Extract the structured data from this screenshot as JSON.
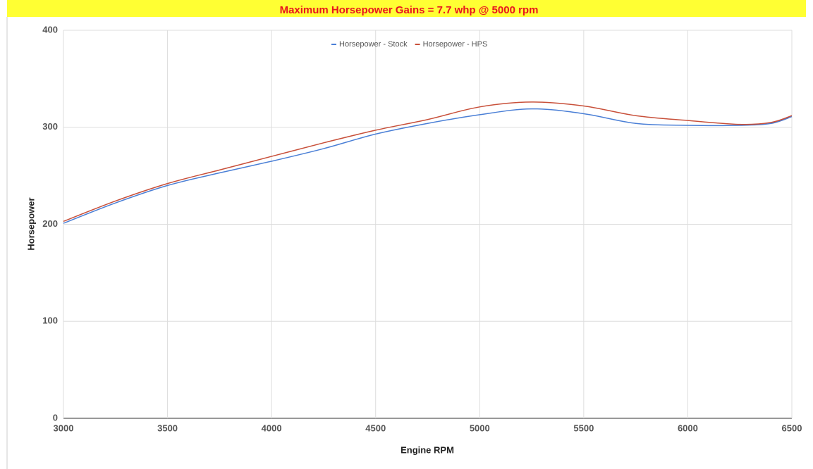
{
  "chart_data": {
    "type": "line",
    "title": "Maximum Horsepower Gains = 7.7 whp @ 5000 rpm",
    "x_label": "Engine RPM",
    "y_label": "Horsepower",
    "x": [
      3000,
      3250,
      3500,
      3750,
      4000,
      4250,
      4500,
      4750,
      5000,
      5250,
      5500,
      5750,
      6000,
      6250,
      6400,
      6500
    ],
    "series": [
      {
        "name": "Horsepower - Stock",
        "color": "#4a7fd6",
        "values": [
          201,
          222,
          240,
          253,
          265,
          278,
          293,
          304,
          313,
          319,
          314,
          304,
          302,
          302,
          304,
          311
        ]
      },
      {
        "name": "Horsepower - HPS",
        "color": "#c8503a",
        "values": [
          203,
          224,
          242,
          256,
          270,
          284,
          297,
          308,
          321,
          326,
          322,
          312,
          307,
          303,
          305,
          312
        ]
      }
    ],
    "xlim": [
      3000,
      6500
    ],
    "xticks": [
      3000,
      3500,
      4000,
      4500,
      5000,
      5500,
      6000,
      6500
    ],
    "ylim": [
      0,
      400
    ],
    "yticks": [
      0,
      100,
      200,
      300,
      400
    ],
    "grid": true,
    "legend": "top"
  }
}
